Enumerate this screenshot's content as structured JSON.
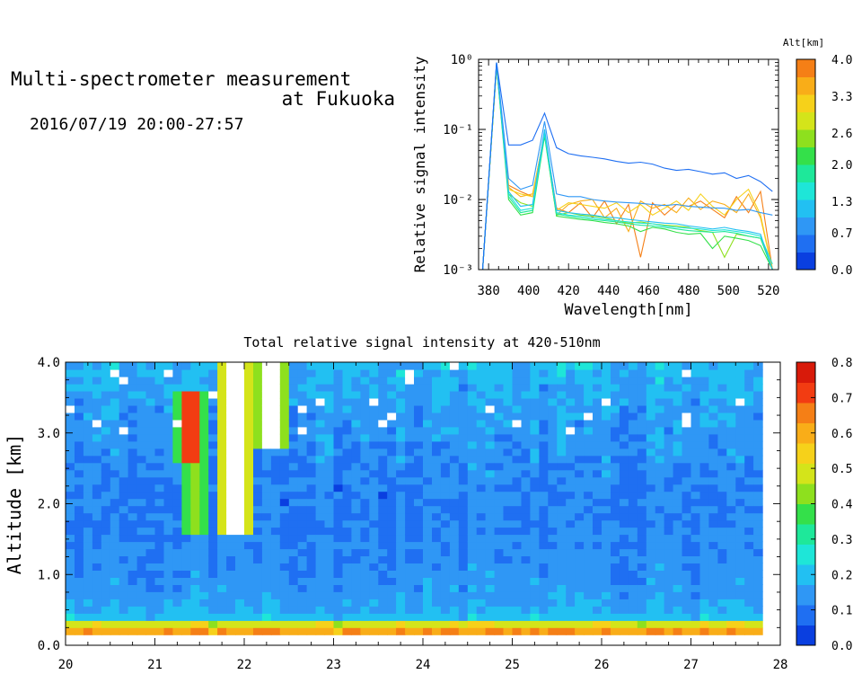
{
  "header": {
    "title_line1": "Multi-spectrometer measurement",
    "title_line2": "at Fukuoka",
    "datetime": "2016/07/19 20:00-27:57"
  },
  "colors": {
    "scale": [
      "#0a3fe0",
      "#1f6ff2",
      "#2f97f5",
      "#22c0f2",
      "#1ee6d8",
      "#1ee89a",
      "#34e04a",
      "#8ee01e",
      "#d4e41a",
      "#f6d11a",
      "#f9ad18",
      "#f57f16",
      "#f23c12",
      "#d81a0a"
    ],
    "saturated": "#ffffff"
  },
  "chart_data": [
    {
      "type": "line",
      "name": "spectrum",
      "xlabel": "Wavelength[nm]",
      "ylabel": "Relative signal intensity",
      "xlim": [
        375,
        525
      ],
      "ylim": [
        0.001,
        1
      ],
      "yscale": "log",
      "x_ticks": [
        380,
        400,
        420,
        440,
        460,
        480,
        500,
        520
      ],
      "y_ticks": [
        {
          "value": 0.001,
          "label": "10⁻³"
        },
        {
          "value": 0.01,
          "label": "10⁻²"
        },
        {
          "value": 0.1,
          "label": "10⁻¹"
        },
        {
          "value": 1,
          "label": "10⁰"
        }
      ],
      "x": [
        377,
        384,
        390,
        396,
        402,
        408,
        414,
        420,
        426,
        432,
        438,
        444,
        450,
        456,
        462,
        468,
        474,
        480,
        486,
        492,
        498,
        504,
        510,
        516,
        522
      ],
      "series": [
        {
          "alt": 0.0,
          "color": "#1f6ff2",
          "values": [
            0.001,
            0.9,
            0.06,
            0.06,
            0.07,
            0.17,
            0.055,
            0.045,
            0.042,
            0.04,
            0.038,
            0.035,
            0.033,
            0.034,
            0.032,
            0.028,
            0.026,
            0.027,
            0.025,
            0.023,
            0.024,
            0.02,
            0.022,
            0.018,
            0.013
          ]
        },
        {
          "alt": 0.7,
          "color": "#2f97f5",
          "values": [
            0.001,
            0.9,
            0.02,
            0.014,
            0.016,
            0.13,
            0.012,
            0.011,
            0.011,
            0.01,
            0.0095,
            0.0092,
            0.009,
            0.0088,
            0.0085,
            0.0082,
            0.0085,
            0.008,
            0.0078,
            0.0076,
            0.0075,
            0.007,
            0.0072,
            0.0065,
            0.006
          ]
        },
        {
          "alt": 1.0,
          "color": "#22c0f2",
          "values": [
            0.001,
            0.9,
            0.013,
            0.008,
            0.0085,
            0.1,
            0.007,
            0.0065,
            0.0062,
            0.006,
            0.0056,
            0.0055,
            0.0052,
            0.005,
            0.0048,
            0.0046,
            0.0045,
            0.0042,
            0.004,
            0.0038,
            0.004,
            0.0037,
            0.0035,
            0.0032,
            0.001
          ]
        },
        {
          "alt": 1.3,
          "color": "#1ee6d8",
          "values": [
            0.001,
            0.85,
            0.012,
            0.007,
            0.0075,
            0.09,
            0.0065,
            0.006,
            0.0058,
            0.0055,
            0.0052,
            0.005,
            0.0048,
            0.0046,
            0.0045,
            0.0042,
            0.004,
            0.0039,
            0.0038,
            0.0036,
            0.0037,
            0.0035,
            0.0033,
            0.003,
            0.0012
          ]
        },
        {
          "alt": 1.6,
          "color": "#1ee89a",
          "values": [
            0.001,
            0.85,
            0.011,
            0.0065,
            0.007,
            0.085,
            0.0062,
            0.0058,
            0.0055,
            0.0052,
            0.005,
            0.0048,
            0.0045,
            0.0043,
            0.0042,
            0.004,
            0.0038,
            0.0036,
            0.0035,
            0.0034,
            0.0035,
            0.0033,
            0.003,
            0.0028,
            0.001
          ]
        },
        {
          "alt": 2.3,
          "color": "#34e04a",
          "values": [
            0.001,
            0.8,
            0.01,
            0.006,
            0.0065,
            0.08,
            0.0058,
            0.0055,
            0.0052,
            0.005,
            0.0047,
            0.0045,
            0.0042,
            0.0035,
            0.004,
            0.0038,
            0.0034,
            0.0032,
            0.0033,
            0.002,
            0.003,
            0.0028,
            0.0026,
            0.0022,
            0.001
          ]
        },
        {
          "alt": 2.9,
          "color": "#8ee01e",
          "values": [
            0.001,
            0.8,
            0.012,
            0.009,
            0.008,
            0.085,
            0.006,
            0.0065,
            0.006,
            0.0058,
            0.0055,
            0.005,
            0.0046,
            0.0048,
            0.0045,
            0.0043,
            0.0042,
            0.004,
            0.0036,
            0.0034,
            0.0015,
            0.0032,
            0.003,
            0.0028,
            0.001
          ]
        },
        {
          "alt": 3.3,
          "color": "#f6d11a",
          "values": [
            0.001,
            0.8,
            0.014,
            0.012,
            0.011,
            0.09,
            0.007,
            0.009,
            0.0085,
            0.008,
            0.0075,
            0.009,
            0.0065,
            0.0085,
            0.006,
            0.0075,
            0.0095,
            0.007,
            0.012,
            0.008,
            0.006,
            0.01,
            0.014,
            0.006,
            0.001
          ]
        },
        {
          "alt": 3.6,
          "color": "#f9ad18",
          "values": [
            0.001,
            0.8,
            0.015,
            0.011,
            0.012,
            0.085,
            0.006,
            0.0085,
            0.0095,
            0.01,
            0.0055,
            0.0075,
            0.0035,
            0.0095,
            0.0075,
            0.0085,
            0.0065,
            0.0105,
            0.0072,
            0.0095,
            0.0085,
            0.0065,
            0.012,
            0.0055,
            0.001
          ]
        },
        {
          "alt": 4.0,
          "color": "#f57f16",
          "values": [
            0.001,
            0.8,
            0.016,
            0.013,
            0.011,
            0.09,
            0.0075,
            0.0065,
            0.009,
            0.0055,
            0.0095,
            0.0045,
            0.0085,
            0.0015,
            0.009,
            0.006,
            0.0085,
            0.008,
            0.0095,
            0.0072,
            0.0055,
            0.011,
            0.0065,
            0.013,
            0.001
          ]
        }
      ]
    },
    {
      "type": "heatmap",
      "name": "time-altitude",
      "title": "Total relative signal intensity at 420-510nm",
      "ylabel": "Altitude [km]",
      "xlim": [
        20,
        28
      ],
      "ylim": [
        0,
        4
      ],
      "x_ticks": [
        "20",
        "21",
        "22",
        "23",
        "24",
        "25",
        "26",
        "27",
        "28"
      ],
      "y_ticks": [
        "0.0",
        "1.0",
        "2.0",
        "3.0",
        "4.0"
      ],
      "data_xlim": [
        20,
        27.8
      ],
      "data_ylim": [
        0.15,
        4.0
      ],
      "base_profile": {
        "alt": [
          0.15,
          0.2,
          0.25,
          0.3,
          0.35,
          0.4,
          0.5,
          0.7,
          1.0,
          1.5,
          2.0,
          2.5,
          3.0,
          3.5,
          4.0
        ],
        "value": [
          0.42,
          0.62,
          0.3,
          0.5,
          0.26,
          0.2,
          0.17,
          0.15,
          0.13,
          0.12,
          0.11,
          0.12,
          0.14,
          0.16,
          0.19
        ]
      },
      "features": [
        {
          "time": 21.4,
          "alt_min": 2.6,
          "alt_max": 3.6,
          "value": 0.7
        },
        {
          "time": 21.45,
          "alt_min": 1.6,
          "alt_max": 2.6,
          "value": 0.45
        },
        {
          "time": 21.9,
          "alt_min": 1.6,
          "alt_max": 4.0,
          "value": 0.9
        },
        {
          "time": 22.3,
          "alt_min": 2.8,
          "alt_max": 4.0,
          "value": 0.8
        }
      ],
      "colorbar": {
        "label": "",
        "ticks": [
          "0.0",
          "0.1",
          "0.2",
          "0.3",
          "0.4",
          "0.5",
          "0.6",
          "0.7",
          "0.8"
        ],
        "range": [
          0,
          0.8
        ]
      }
    }
  ],
  "altbar": {
    "label": "Alt[km]",
    "ticks": [
      "0.0",
      "0.7",
      "1.3",
      "2.0",
      "2.6",
      "3.3",
      "4.0"
    ]
  }
}
